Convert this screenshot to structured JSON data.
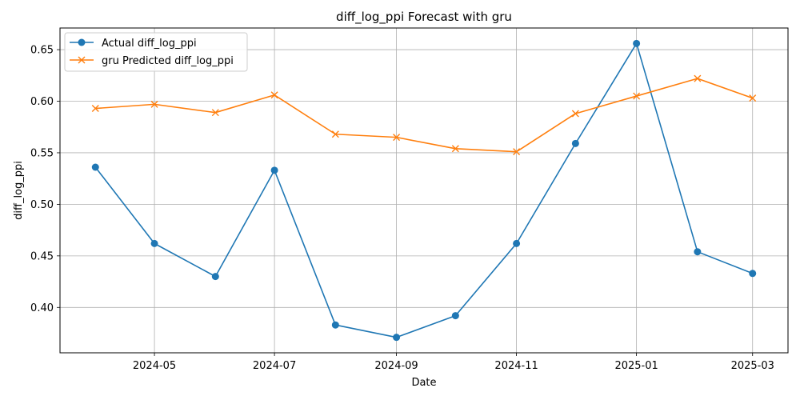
{
  "chart_data": {
    "type": "line",
    "title": "diff_log_ppi Forecast with gru",
    "xlabel": "Date",
    "ylabel": "diff_log_ppi",
    "x": [
      "2024-04-01",
      "2024-05-01",
      "2024-06-01",
      "2024-07-01",
      "2024-08-01",
      "2024-09-01",
      "2024-10-01",
      "2024-11-01",
      "2024-12-01",
      "2025-01-01",
      "2025-02-01",
      "2025-03-01"
    ],
    "xlim": [
      "2024-03-14",
      "2025-03-19"
    ],
    "xticks": [
      "2024-05",
      "2024-07",
      "2024-09",
      "2024-11",
      "2025-01",
      "2025-03"
    ],
    "ylim": [
      0.356,
      0.671
    ],
    "yticks": [
      "0.40",
      "0.45",
      "0.50",
      "0.55",
      "0.60",
      "0.65"
    ],
    "grid": true,
    "legend_position": "top-left",
    "series": [
      {
        "name": "Actual diff_log_ppi",
        "color": "#1f77b4",
        "marker": "circle",
        "values": [
          0.536,
          0.462,
          0.43,
          0.533,
          0.383,
          0.371,
          0.392,
          0.462,
          0.559,
          0.656,
          0.454,
          0.433
        ]
      },
      {
        "name": "gru Predicted diff_log_ppi",
        "color": "#ff7f0e",
        "marker": "x",
        "values": [
          0.593,
          0.597,
          0.589,
          0.606,
          0.568,
          0.565,
          0.554,
          0.551,
          0.588,
          0.605,
          0.622,
          0.603
        ]
      }
    ]
  }
}
